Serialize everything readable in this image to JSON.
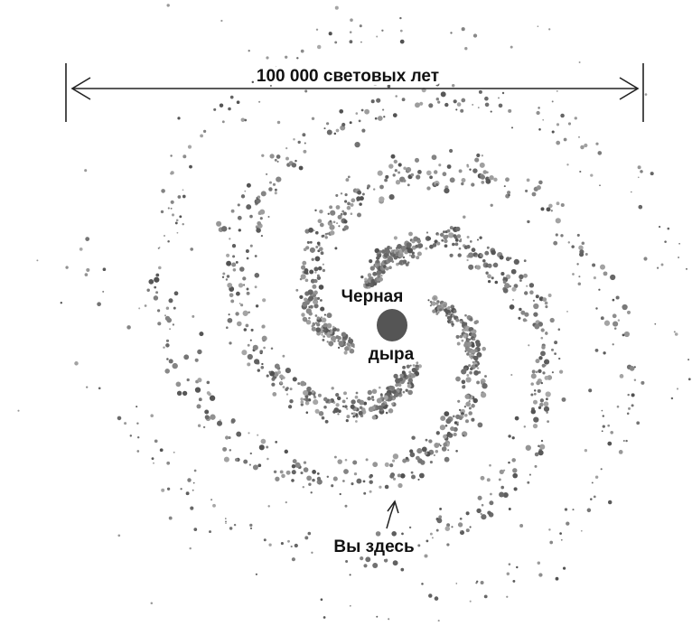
{
  "scale_label": "100 000 световых лет",
  "black_hole": {
    "line1": "Черная",
    "line2": "дыра"
  },
  "you_are_here": "Вы здесь"
}
